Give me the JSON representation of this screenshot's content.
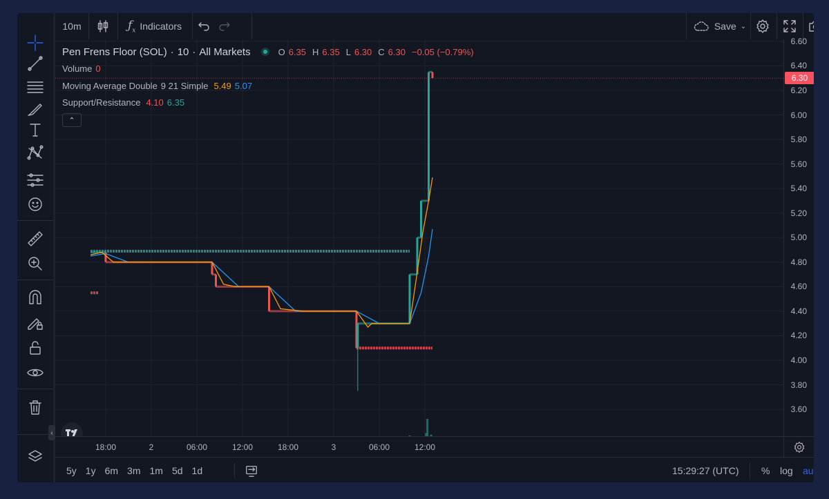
{
  "colors": {
    "bg": "#131722",
    "up": "#26a69a",
    "down": "#ef5350",
    "ma_fast": "#ff9800",
    "ma_slow": "#2196f3",
    "price_label": "#f7525f"
  },
  "left_toolbar": {
    "icons": [
      "crosshair-icon",
      "trend-line-icon",
      "fib-icon",
      "brush-icon",
      "text-icon",
      "pattern-icon",
      "prediction-icon",
      "emoji-icon",
      "ruler-icon",
      "zoom-in-icon",
      "magnet-icon",
      "lock-drawing-icon",
      "lock-icon",
      "eye-icon",
      "trash-icon",
      "layers-icon"
    ]
  },
  "top_toolbar": {
    "interval": "10m",
    "indicators_label": "Indicators",
    "save_label": "Save"
  },
  "legend": {
    "title": "Pen Frens Floor (SOL)",
    "interval": "10",
    "market": "All Markets",
    "o_label": "O",
    "o": "6.35",
    "h_label": "H",
    "h": "6.35",
    "l_label": "L",
    "l": "6.30",
    "c_label": "C",
    "c": "6.30",
    "change": "−0.05 (−0.79%)",
    "volume_name": "Volume",
    "volume_value": "0",
    "ma_name": "Moving Average Double",
    "ma_params": "9 21 Simple",
    "ma_fast": "5.49",
    "ma_slow": "5.07",
    "sr_name": "Support/Resistance",
    "sr_low": "4.10",
    "sr_high": "6.35"
  },
  "price_axis": {
    "ticks": [
      "6.60",
      "6.40",
      "6.20",
      "6.00",
      "5.80",
      "5.60",
      "5.40",
      "5.20",
      "5.00",
      "4.80",
      "4.60",
      "4.40",
      "4.20",
      "4.00",
      "3.80",
      "3.60"
    ],
    "current": "6.30"
  },
  "time_axis": {
    "ticks": [
      "18:00",
      "2",
      "06:00",
      "12:00",
      "18:00",
      "3",
      "06:00",
      "12:00"
    ]
  },
  "bottom_bar": {
    "ranges": [
      "5y",
      "1y",
      "6m",
      "3m",
      "1m",
      "5d",
      "1d"
    ],
    "clock": "15:29:27 (UTC)",
    "percent": "%",
    "log": "log",
    "auto": "auto"
  },
  "chart_data": {
    "type": "line",
    "symbol": "Pen Frens Floor (SOL)",
    "ylim": [
      3.55,
      6.65
    ],
    "xlim": [
      "1 16:00",
      "3 15:30"
    ],
    "price_steps": [
      {
        "t": "1 16:00",
        "v": 4.88
      },
      {
        "t": "1 18:00",
        "v": 4.8
      },
      {
        "t": "2 08:00",
        "v": 4.7
      },
      {
        "t": "2 08:30",
        "v": 4.6
      },
      {
        "t": "2 15:30",
        "v": 4.4
      },
      {
        "t": "3 03:00",
        "v": 4.1
      },
      {
        "t": "3 03:10",
        "v": 4.3
      },
      {
        "t": "3 10:00",
        "v": 4.7
      },
      {
        "t": "3 11:00",
        "v": 5.0
      },
      {
        "t": "3 11:30",
        "v": 5.3
      },
      {
        "t": "3 12:30",
        "v": 6.35
      },
      {
        "t": "3 13:00",
        "v": 6.3
      }
    ],
    "ma_fast": [
      {
        "t": "1 16:00",
        "v": 4.86
      },
      {
        "t": "1 17:30",
        "v": 4.88
      },
      {
        "t": "1 19:00",
        "v": 4.8
      },
      {
        "t": "2 08:00",
        "v": 4.8
      },
      {
        "t": "2 09:30",
        "v": 4.62
      },
      {
        "t": "2 11:00",
        "v": 4.6
      },
      {
        "t": "2 15:30",
        "v": 4.6
      },
      {
        "t": "2 17:00",
        "v": 4.42
      },
      {
        "t": "2 20:00",
        "v": 4.4
      },
      {
        "t": "3 03:00",
        "v": 4.4
      },
      {
        "t": "3 04:30",
        "v": 4.27
      },
      {
        "t": "3 05:00",
        "v": 4.3
      },
      {
        "t": "3 10:00",
        "v": 4.3
      },
      {
        "t": "3 11:00",
        "v": 4.72
      },
      {
        "t": "3 11:45",
        "v": 5.05
      },
      {
        "t": "3 12:30",
        "v": 5.3
      },
      {
        "t": "3 13:00",
        "v": 5.49
      }
    ],
    "ma_slow": [
      {
        "t": "1 16:00",
        "v": 4.85
      },
      {
        "t": "1 18:00",
        "v": 4.87
      },
      {
        "t": "1 21:00",
        "v": 4.8
      },
      {
        "t": "2 08:00",
        "v": 4.8
      },
      {
        "t": "2 11:30",
        "v": 4.6
      },
      {
        "t": "2 15:30",
        "v": 4.6
      },
      {
        "t": "2 19:00",
        "v": 4.4
      },
      {
        "t": "3 03:00",
        "v": 4.4
      },
      {
        "t": "3 06:00",
        "v": 4.3
      },
      {
        "t": "3 10:00",
        "v": 4.3
      },
      {
        "t": "3 11:30",
        "v": 4.55
      },
      {
        "t": "3 12:30",
        "v": 4.85
      },
      {
        "t": "3 13:00",
        "v": 5.07
      }
    ],
    "support_resistance": [
      {
        "v": 4.89,
        "from": "1 16:00",
        "to": "3 10:00",
        "kind": "resistance"
      },
      {
        "v": 4.55,
        "from": "1 16:00",
        "to": "1 17:00",
        "kind": "support"
      },
      {
        "v": 4.1,
        "from": "3 03:00",
        "to": "3 13:00",
        "kind": "support"
      }
    ],
    "volume_bars": [
      {
        "t": "1 19:30",
        "v": 0.5
      },
      {
        "t": "2 22:30",
        "v": 0.5
      },
      {
        "t": "3 03:00",
        "v": 0.9
      },
      {
        "t": "3 10:00",
        "v": 1.5
      },
      {
        "t": "3 10:10",
        "v": 0.5
      },
      {
        "t": "3 12:00",
        "v": 1.4
      },
      {
        "t": "3 12:10",
        "v": 1.8
      },
      {
        "t": "3 12:20",
        "v": 3.5
      },
      {
        "t": "3 12:30",
        "v": 0.8
      },
      {
        "t": "3 12:40",
        "v": 0.7
      },
      {
        "t": "3 12:50",
        "v": 1.6
      }
    ]
  }
}
